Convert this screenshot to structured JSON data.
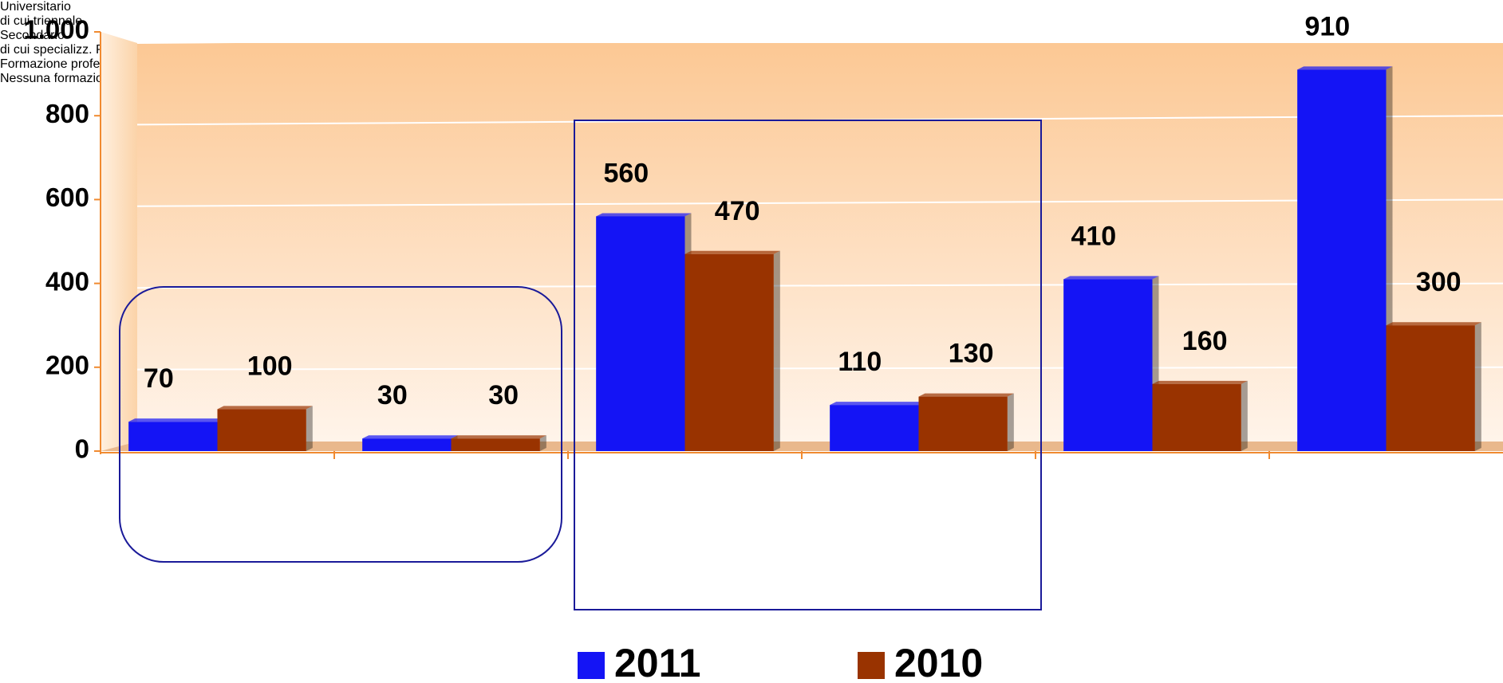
{
  "chart_data": {
    "type": "bar",
    "categories": [
      "Universitario",
      "di cui\ntriennale",
      "Secondario",
      "di cui\nspecializz.\nPost-diploma",
      "Formazione\nprofessionale",
      "Nessuna\nformazione\nspecifica"
    ],
    "series": [
      {
        "name": "2011",
        "color": "#1414f5",
        "values": [
          70,
          30,
          560,
          110,
          410,
          910
        ]
      },
      {
        "name": "2010",
        "color": "#993300",
        "values": [
          100,
          30,
          470,
          130,
          160,
          300
        ]
      }
    ],
    "ylim": [
      0,
      1000
    ],
    "yticks": [
      0,
      200,
      400,
      600,
      800,
      {
        "value": 1000,
        "label": "1.000"
      }
    ],
    "grid": true,
    "legend": "bottom"
  }
}
